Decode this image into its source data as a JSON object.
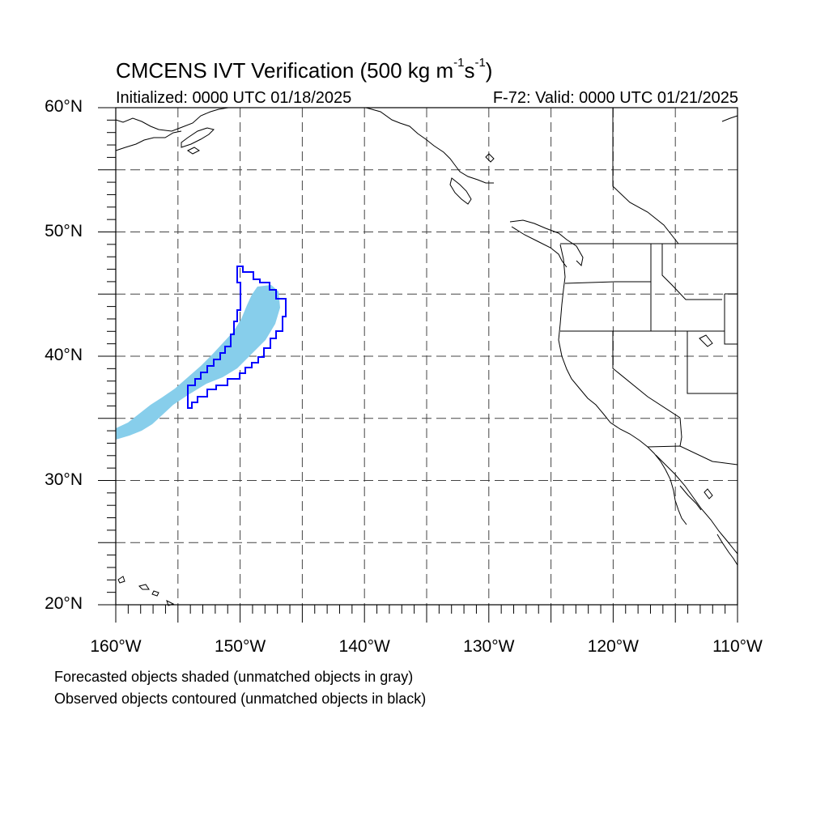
{
  "header": {
    "title_main": "CMCENS IVT Verification (500 kg m",
    "title_exp1": "-1",
    "title_mid": "s",
    "title_exp2": "-1",
    "title_end": ")",
    "initialized": "Initialized: 0000 UTC 01/18/2025",
    "valid": "F-72: Valid: 0000 UTC 01/21/2025"
  },
  "map": {
    "projection": "cylindrical equidistant",
    "lon_range": [
      -160,
      -110
    ],
    "lat_range": [
      20,
      60
    ],
    "y_ticks": [
      {
        "lat": 60,
        "label": "60°N"
      },
      {
        "lat": 50,
        "label": "50°N"
      },
      {
        "lat": 40,
        "label": "40°N"
      },
      {
        "lat": 30,
        "label": "30°N"
      },
      {
        "lat": 20,
        "label": "20°N"
      }
    ],
    "x_ticks": [
      {
        "lon": -160,
        "label": "160°W"
      },
      {
        "lon": -150,
        "label": "150°W"
      },
      {
        "lon": -140,
        "label": "140°W"
      },
      {
        "lon": -130,
        "label": "130°W"
      },
      {
        "lon": -120,
        "label": "120°W"
      },
      {
        "lon": -110,
        "label": "110°W"
      }
    ],
    "grid_spacing_deg": 5,
    "grid_style": "dashed",
    "forecast_shade_color": "#87ceeb",
    "observed_contour_color": "#0000ff",
    "coastline_color": "#000000"
  },
  "notes": {
    "line1": "Forecasted objects shaded (unmatched objects in gray)",
    "line2": "Observed objects contoured (unmatched objects in black)"
  }
}
